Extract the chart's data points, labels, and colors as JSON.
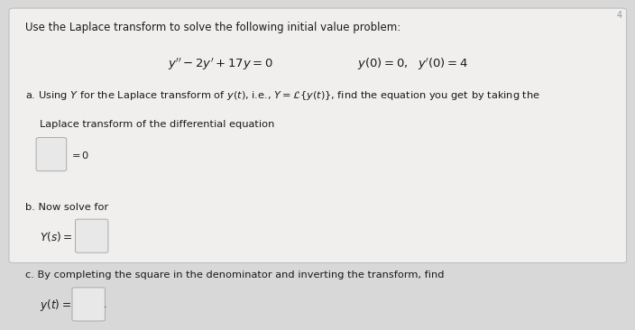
{
  "background_color": "#d8d8d8",
  "card_color": "#f0efee",
  "border_color": "#bbbbbb",
  "title_text": "Use the Laplace transform to solve the following initial value problem:",
  "text_color": "#1a1a1a",
  "font_size_title": 8.5,
  "font_size_eq": 9.5,
  "font_size_body": 8.2,
  "watermark": "4",
  "box_color": "#e8e8e8",
  "box_edge": "#aaaaaa"
}
